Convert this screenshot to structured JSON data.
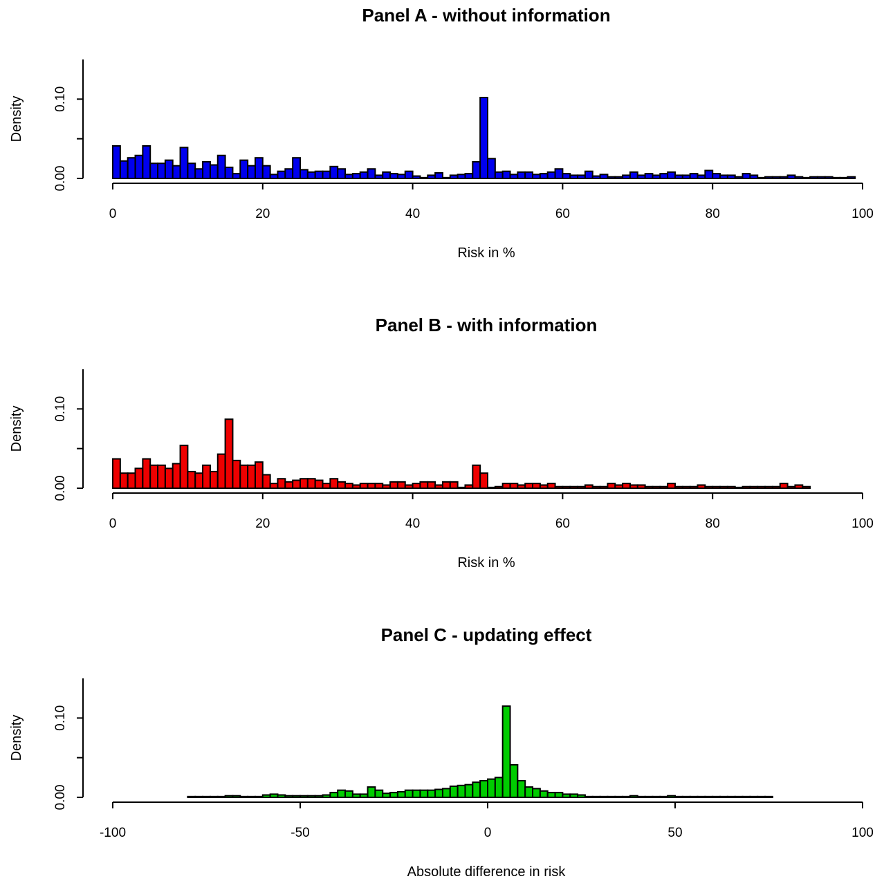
{
  "chart_data": [
    {
      "type": "bar",
      "title": "Panel A - without information",
      "xlabel": "Risk in %",
      "ylabel": "Density",
      "xlim": [
        0,
        100
      ],
      "ylim": [
        0,
        0.15
      ],
      "xticks": [
        0,
        20,
        40,
        60,
        80,
        100
      ],
      "xtick_labels": [
        "0",
        "20",
        "40",
        "60",
        "80",
        "100"
      ],
      "yticks": [
        0,
        0.05,
        0.1
      ],
      "ytick_labels": [
        "0.00",
        "",
        "0.10"
      ],
      "bin_start": 0,
      "bin_width": 1,
      "color": "#0000ee",
      "values": [
        0.041,
        0.022,
        0.026,
        0.029,
        0.041,
        0.019,
        0.019,
        0.023,
        0.016,
        0.039,
        0.019,
        0.012,
        0.021,
        0.017,
        0.029,
        0.014,
        0.006,
        0.023,
        0.016,
        0.026,
        0.016,
        0.005,
        0.009,
        0.012,
        0.026,
        0.011,
        0.008,
        0.009,
        0.009,
        0.015,
        0.012,
        0.005,
        0.006,
        0.008,
        0.012,
        0.004,
        0.008,
        0.006,
        0.005,
        0.009,
        0.003,
        0.001,
        0.004,
        0.007,
        0.001,
        0.004,
        0.005,
        0.006,
        0.021,
        0.102,
        0.025,
        0.008,
        0.009,
        0.005,
        0.008,
        0.008,
        0.005,
        0.006,
        0.008,
        0.012,
        0.006,
        0.004,
        0.004,
        0.009,
        0.003,
        0.005,
        0.002,
        0.002,
        0.004,
        0.008,
        0.004,
        0.006,
        0.004,
        0.006,
        0.008,
        0.004,
        0.004,
        0.006,
        0.004,
        0.01,
        0.006,
        0.004,
        0.004,
        0.002,
        0.006,
        0.004,
        0.001,
        0.002,
        0.002,
        0.002,
        0.004,
        0.002,
        0.001,
        0.002,
        0.002,
        0.002,
        0.001,
        0.001,
        0.002
      ]
    },
    {
      "type": "bar",
      "title": "Panel B - with information",
      "xlabel": "Risk in %",
      "ylabel": "Density",
      "xlim": [
        0,
        100
      ],
      "ylim": [
        0,
        0.15
      ],
      "xticks": [
        0,
        20,
        40,
        60,
        80,
        100
      ],
      "xtick_labels": [
        "0",
        "20",
        "40",
        "60",
        "80",
        "100"
      ],
      "yticks": [
        0,
        0.05,
        0.1
      ],
      "ytick_labels": [
        "0.00",
        "",
        "0.10"
      ],
      "bin_start": 0,
      "bin_width": 1,
      "color": "#ee0000",
      "values": [
        0.037,
        0.019,
        0.019,
        0.025,
        0.037,
        0.029,
        0.029,
        0.025,
        0.031,
        0.054,
        0.021,
        0.019,
        0.029,
        0.021,
        0.043,
        0.087,
        0.035,
        0.029,
        0.029,
        0.033,
        0.017,
        0.006,
        0.012,
        0.008,
        0.01,
        0.012,
        0.012,
        0.01,
        0.006,
        0.012,
        0.008,
        0.006,
        0.004,
        0.006,
        0.006,
        0.006,
        0.004,
        0.008,
        0.008,
        0.004,
        0.006,
        0.008,
        0.008,
        0.004,
        0.008,
        0.008,
        0.001,
        0.004,
        0.029,
        0.019,
        0.001,
        0.002,
        0.006,
        0.006,
        0.004,
        0.006,
        0.006,
        0.004,
        0.006,
        0.002,
        0.002,
        0.002,
        0.002,
        0.004,
        0.002,
        0.002,
        0.006,
        0.004,
        0.006,
        0.004,
        0.004,
        0.002,
        0.002,
        0.002,
        0.006,
        0.002,
        0.002,
        0.002,
        0.004,
        0.002,
        0.002,
        0.002,
        0.002,
        0.001,
        0.002,
        0.002,
        0.002,
        0.002,
        0.002,
        0.006,
        0.002,
        0.004,
        0.002
      ]
    },
    {
      "type": "bar",
      "title": "Panel C - updating effect",
      "xlabel": "Absolute difference in risk",
      "ylabel": "Density",
      "xlim": [
        -100,
        100
      ],
      "ylim": [
        0,
        0.15
      ],
      "xticks": [
        -100,
        -50,
        0,
        50,
        100
      ],
      "xtick_labels": [
        "-100",
        "-50",
        "0",
        "50",
        "100"
      ],
      "yticks": [
        0,
        0.05,
        0.1
      ],
      "ytick_labels": [
        "0.00",
        "",
        "0.10"
      ],
      "bin_start": -80,
      "bin_width": 2,
      "color": "#00cc00",
      "values": [
        0.001,
        0.001,
        0.001,
        0.001,
        0.001,
        0.002,
        0.002,
        0.001,
        0.001,
        0.001,
        0.003,
        0.004,
        0.003,
        0.002,
        0.002,
        0.002,
        0.002,
        0.002,
        0.003,
        0.006,
        0.009,
        0.008,
        0.004,
        0.004,
        0.013,
        0.009,
        0.005,
        0.006,
        0.007,
        0.009,
        0.009,
        0.009,
        0.009,
        0.01,
        0.011,
        0.014,
        0.015,
        0.016,
        0.019,
        0.021,
        0.023,
        0.025,
        0.115,
        0.041,
        0.021,
        0.013,
        0.011,
        0.008,
        0.006,
        0.006,
        0.004,
        0.004,
        0.003,
        0.001,
        0.001,
        0.001,
        0.001,
        0.001,
        0.001,
        0.002,
        0.001,
        0.001,
        0.001,
        0.001,
        0.002,
        0.001,
        0.001,
        0.001,
        0.001,
        0.001,
        0.001,
        0.001,
        0.001,
        0.001,
        0.001,
        0.001,
        0.001,
        0.001
      ]
    }
  ]
}
